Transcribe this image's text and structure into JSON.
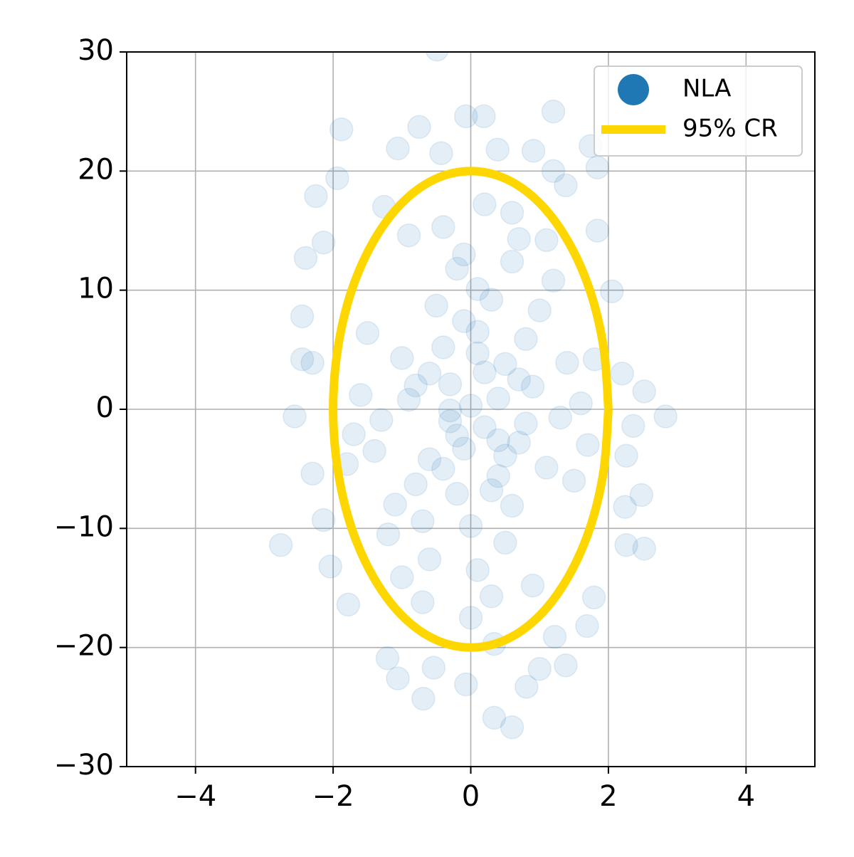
{
  "chart_data": {
    "type": "scatter",
    "xlim": [
      -5,
      5
    ],
    "ylim": [
      -30,
      30
    ],
    "xticks": [
      {
        "value": -4,
        "label": "−4"
      },
      {
        "value": -2,
        "label": "−2"
      },
      0,
      2,
      4
    ],
    "yticks": [
      {
        "value": -30,
        "label": "−30"
      },
      {
        "value": -20,
        "label": "−20"
      },
      {
        "value": -10,
        "label": "−10"
      },
      0,
      10,
      20,
      30
    ],
    "grid": true,
    "legend_position": "upper-right",
    "series": [
      {
        "name": "NLA",
        "color": "#1f77b4",
        "alpha": 0.12,
        "mode": "markers",
        "x": [
          -0.49,
          -1.88,
          -0.07,
          0.19,
          1.2,
          -0.75,
          -1.06,
          -1.94,
          -2.25,
          -2.14,
          -2.4,
          -2.45,
          -2.45,
          -2.3,
          -2.56,
          -2.76,
          -2.3,
          -2.14,
          -2.04,
          -1.78,
          -1.21,
          -1.06,
          -0.69,
          -0.54,
          -0.07,
          0.34,
          0.6,
          1.0,
          1.38,
          1.69,
          1.79,
          2.52,
          2.26,
          2.48,
          2.24,
          2.26,
          2.36,
          2.83,
          2.52,
          2.2,
          2.05,
          1.84,
          1.84,
          1.74,
          0.7,
          0.39,
          0.91,
          1.2,
          1.38,
          -1.26,
          -0.43,
          0.34,
          1.22,
          0.81,
          -0.3,
          0.2,
          0.5,
          -0.6,
          0.1,
          -0.2,
          0.7,
          -0.9,
          0.4,
          -0.4,
          0.9,
          -0.1,
          0.3,
          -0.7,
          0.6,
          -0.5,
          1.1,
          -1.0,
          0.0,
          0.2,
          -0.3,
          0.8,
          -0.8,
          0.5,
          -0.2,
          1.3,
          -1.3,
          0.1,
          -0.1,
          0.6,
          -0.6,
          1.0,
          -1.1,
          1.4,
          -1.4,
          0.3,
          -0.4,
          0.9,
          -0.9,
          1.5,
          -1.5,
          0.0,
          0.2,
          1.2,
          -1.2,
          1.6,
          -1.6,
          0.4,
          -0.2,
          0.1,
          0.5,
          -0.4,
          0.7,
          -0.6,
          0.3,
          -0.1,
          0.8,
          -0.8,
          1.7,
          -1.7,
          1.1,
          -1.0,
          0.6,
          -0.7,
          1.8,
          -1.8,
          0.0,
          0.1,
          -0.3,
          0.4
        ],
        "y": [
          30.2,
          23.5,
          24.6,
          24.6,
          25,
          23.7,
          21.9,
          19.4,
          17.9,
          14.0,
          12.7,
          7.8,
          4.2,
          3.9,
          -0.6,
          -11.4,
          -5.4,
          -9.3,
          -13.2,
          -16.4,
          -20.9,
          -22.6,
          -24.3,
          -21.7,
          -23.1,
          -25.9,
          -26.7,
          -21.8,
          -21.5,
          -18.2,
          -15.8,
          -11.7,
          -11.4,
          -7.2,
          -8.2,
          -3.9,
          -1.4,
          -0.6,
          1.5,
          3.0,
          9.9,
          15.0,
          20.3,
          22.1,
          14.3,
          21.8,
          21.7,
          20,
          18.8,
          17.0,
          21.5,
          -19.7,
          -19.1,
          -23.3,
          2.1,
          -1.5,
          3.8,
          -4.2,
          6.5,
          -7.1,
          -2.8,
          0.8,
          -5.6,
          5.2,
          1.9,
          -3.3,
          9.2,
          -9.4,
          -8.1,
          8.7,
          -4.9,
          4.3,
          0.3,
          3.1,
          -1.0,
          5.9,
          -6.3,
          -11.2,
          11.8,
          -0.7,
          -0.9,
          -13.5,
          13.0,
          12.4,
          -12.6,
          8.3,
          -8.0,
          3.9,
          -3.5,
          -15.7,
          15.3,
          -14.8,
          14.6,
          -6.0,
          6.4,
          -17.5,
          17.2,
          10.8,
          -10.5,
          0.5,
          1.2,
          0.9,
          -2.2,
          4.7,
          -3.9,
          -5.0,
          2.5,
          3.0,
          -6.8,
          7.4,
          -1.2,
          2.0,
          -3.0,
          -2.1,
          14.2,
          -14.1,
          16.5,
          -16.2,
          4.2,
          -4.6,
          -9.8,
          10.1,
          -0.1,
          -2.6
        ]
      },
      {
        "name": "95% CR",
        "color": "#ffd700",
        "mode": "line",
        "x": [
          2,
          1.93,
          1.73,
          1.41,
          1,
          0.52,
          0,
          -0.52,
          -1,
          -1.41,
          -1.73,
          -1.93,
          -2,
          -1.93,
          -1.73,
          -1.41,
          -1,
          -0.52,
          0,
          0.52,
          1,
          1.41,
          1.73,
          1.93,
          2
        ],
        "y": [
          0,
          5.18,
          10,
          14.14,
          17.32,
          19.32,
          20,
          19.32,
          17.32,
          14.14,
          10,
          5.18,
          0,
          -5.18,
          -10,
          -14.14,
          -17.32,
          -19.32,
          -20,
          -19.32,
          -17.32,
          -14.14,
          -10,
          -5.18,
          0
        ]
      }
    ]
  }
}
